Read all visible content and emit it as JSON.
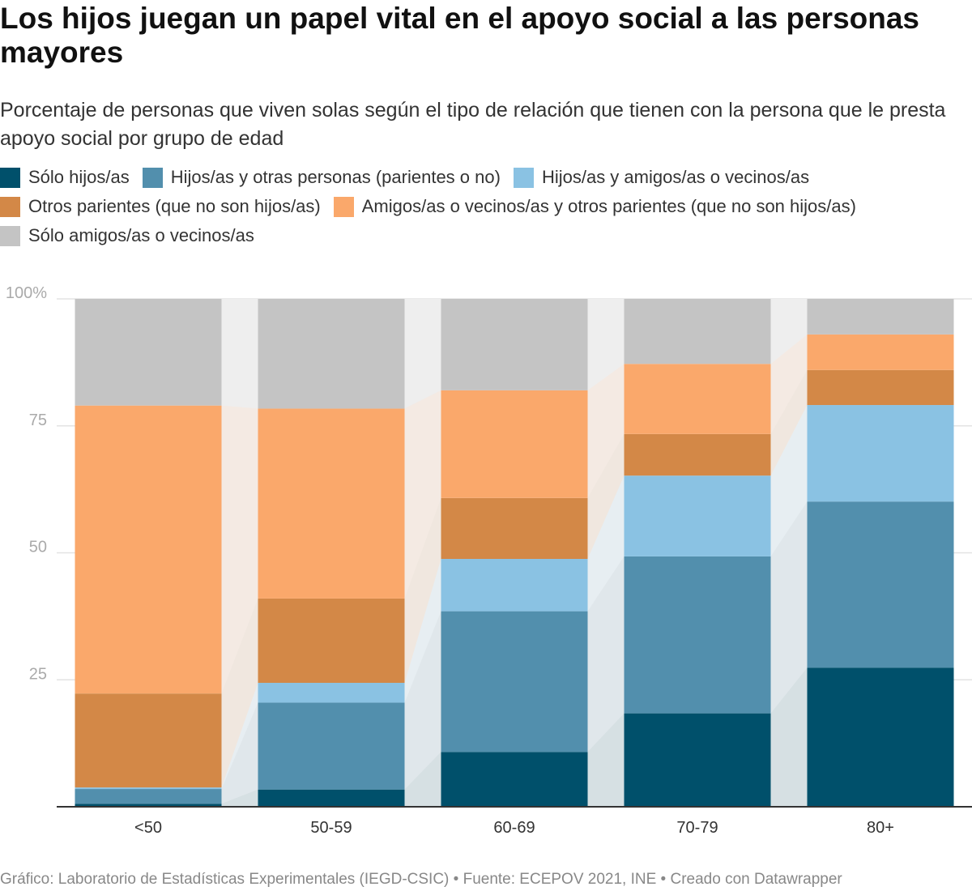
{
  "title": "Los hijos juegan un papel vital en el apoyo social a las personas mayores",
  "subtitle": "Porcentaje de personas que viven solas según el tipo de relación que tienen con la persona que le presta apoyo social por grupo de edad",
  "footer": "Gráfico: Laboratorio de Estadísticas Experimentales (IEGD-CSIC) • Fuente: ECEPOV 2021, INE • Creado con Datawrapper",
  "chart_data": {
    "type": "bar",
    "stacked": true,
    "categories": [
      "<50",
      "50-59",
      "60-69",
      "70-79",
      "80+"
    ],
    "y_ticks": [
      {
        "value": 100,
        "label": "100%"
      },
      {
        "value": 75,
        "label": "75"
      },
      {
        "value": 50,
        "label": "50"
      },
      {
        "value": 25,
        "label": "25"
      }
    ],
    "ylim": [
      0,
      100
    ],
    "grid": true,
    "legend_position": "top",
    "series": [
      {
        "name": "Sólo hijos/as",
        "color": "#00506b",
        "values": [
          0.6,
          3.4,
          10.8,
          18.4,
          27.4
        ]
      },
      {
        "name": "Hijos/as y otras personas (parientes o no)",
        "color": "#528fad",
        "values": [
          2.9,
          17.1,
          27.7,
          30.9,
          32.7
        ]
      },
      {
        "name": "Hijos/as y amigos/as o vecinos/as",
        "color": "#8ac2e3",
        "values": [
          0.3,
          3.9,
          10.3,
          15.9,
          19.0
        ]
      },
      {
        "name": "Otros parientes (que no son hijos/as)",
        "color": "#d38847",
        "values": [
          18.5,
          16.6,
          12.0,
          8.2,
          6.9
        ]
      },
      {
        "name": "Amigos/as o vecinos/as y otros parientes (que no son hijos/as)",
        "color": "#faa86b",
        "values": [
          56.7,
          37.4,
          21.2,
          13.8,
          7.0
        ]
      },
      {
        "name": "Sólo amigos/as o vecinos/as",
        "color": "#c4c4c4",
        "values": [
          21.0,
          21.6,
          18.0,
          12.8,
          7.0
        ]
      }
    ]
  }
}
